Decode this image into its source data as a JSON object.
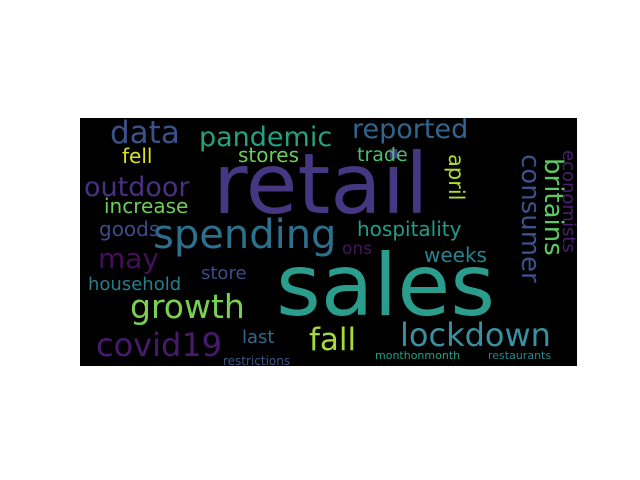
{
  "image": {
    "type": "word cloud",
    "background": "#000000",
    "page_background": "#ffffff",
    "palette": "viridis"
  },
  "words": [
    {
      "text": "retail",
      "color": "#453781",
      "orientation": "horizontal"
    },
    {
      "text": "sales",
      "color": "#2a9d8c",
      "orientation": "horizontal"
    },
    {
      "text": "spending",
      "color": "#2d708e",
      "orientation": "horizontal"
    },
    {
      "text": "lockdown",
      "color": "#3a8fa0",
      "orientation": "horizontal"
    },
    {
      "text": "covid19",
      "color": "#481a6c",
      "orientation": "horizontal"
    },
    {
      "text": "growth",
      "color": "#7ad151",
      "orientation": "horizontal"
    },
    {
      "text": "data",
      "color": "#3b518b",
      "orientation": "horizontal"
    },
    {
      "text": "pandemic",
      "color": "#26a07f",
      "orientation": "horizontal"
    },
    {
      "text": "reported",
      "color": "#32658e",
      "orientation": "horizontal"
    },
    {
      "text": "outdoor",
      "color": "#46327e",
      "orientation": "horizontal"
    },
    {
      "text": "may",
      "color": "#440f5a",
      "orientation": "horizontal"
    },
    {
      "text": "consumer",
      "color": "#3b528b",
      "orientation": "vertical"
    },
    {
      "text": "britains",
      "color": "#5ec962",
      "orientation": "vertical"
    },
    {
      "text": "fall",
      "color": "#a5db36",
      "orientation": "horizontal"
    },
    {
      "text": "fell",
      "color": "#dde318",
      "orientation": "horizontal"
    },
    {
      "text": "stores",
      "color": "#6ccd5a",
      "orientation": "horizontal"
    },
    {
      "text": "trade",
      "color": "#4ac16d",
      "orientation": "horizontal"
    },
    {
      "text": "april",
      "color": "#b0dd2f",
      "orientation": "vertical"
    },
    {
      "text": "economists",
      "color": "#481f70",
      "orientation": "vertical"
    },
    {
      "text": "increase",
      "color": "#6ece58",
      "orientation": "horizontal"
    },
    {
      "text": "goods",
      "color": "#3e4a89",
      "orientation": "horizontal"
    },
    {
      "text": "hospitality",
      "color": "#1f9e89",
      "orientation": "horizontal"
    },
    {
      "text": "weeks",
      "color": "#25858e",
      "orientation": "horizontal"
    },
    {
      "text": "ons",
      "color": "#471365",
      "orientation": "horizontal"
    },
    {
      "text": "store",
      "color": "#3e4c8a",
      "orientation": "horizontal"
    },
    {
      "text": "household",
      "color": "#277f8e",
      "orientation": "horizontal"
    },
    {
      "text": "last",
      "color": "#31688e",
      "orientation": "horizontal"
    },
    {
      "text": "restrictions",
      "color": "#38598c",
      "orientation": "horizontal"
    },
    {
      "text": "monthonmonth",
      "color": "#1fa187",
      "orientation": "horizontal"
    },
    {
      "text": "restaurants",
      "color": "#23898e",
      "orientation": "horizontal"
    }
  ]
}
